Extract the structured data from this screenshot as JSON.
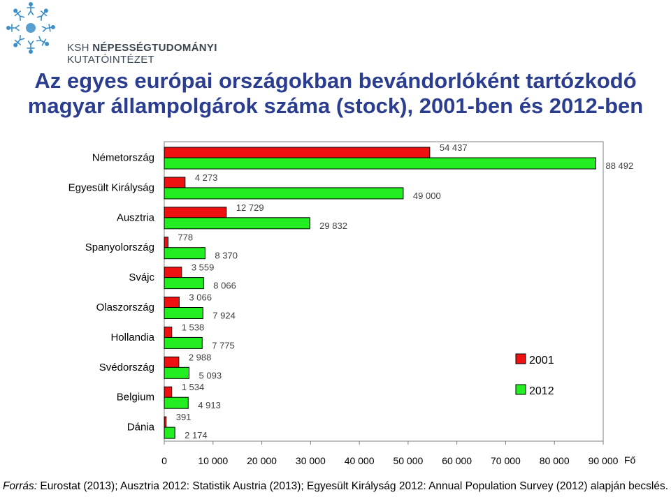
{
  "logo": {
    "org_name_line1_prefix": "KSH ",
    "org_name_line1_strong": "NÉPESSÉGTUDOMÁNYI",
    "org_name_line2": "KUTATÓINTÉZET",
    "color": "#3a8fc9"
  },
  "title": {
    "line1": "Az egyes európai országokban bevándorlóként tartózkodó",
    "line2": "magyar állampolgárok száma (stock), 2001-ben és 2012-ben"
  },
  "chart_data": {
    "type": "bar",
    "orientation": "horizontal",
    "categories": [
      "Németország",
      "Egyesült Királyság",
      "Ausztria",
      "Spanyolország",
      "Svájc",
      "Olaszország",
      "Hollandia",
      "Svédország",
      "Belgium",
      "Dánia"
    ],
    "series": [
      {
        "name": "2001",
        "color": "#ee1111",
        "values": [
          54437,
          4273,
          12729,
          778,
          3559,
          3066,
          1538,
          2988,
          1534,
          391
        ],
        "labels": [
          "54 437",
          "4 273",
          "12 729",
          "778",
          "3 559",
          "3 066",
          "1 538",
          "2 988",
          "1 534",
          "391"
        ]
      },
      {
        "name": "2012",
        "color": "#22ee22",
        "values": [
          88492,
          49000,
          29832,
          8370,
          8066,
          7924,
          7775,
          5093,
          4913,
          2174
        ],
        "labels": [
          "88 492",
          "49 000",
          "29 832",
          "8 370",
          "8 066",
          "7 924",
          "7 775",
          "5 093",
          "4 913",
          "2 174"
        ]
      }
    ],
    "xlim": [
      0,
      90000
    ],
    "xticks": [
      0,
      10000,
      20000,
      30000,
      40000,
      50000,
      60000,
      70000,
      80000,
      90000
    ],
    "xtick_labels": [
      "0",
      "10 000",
      "20 000",
      "30 000",
      "40 000",
      "50 000",
      "60 000",
      "70 000",
      "80 000",
      "90 000"
    ],
    "xlabel": "Fő",
    "ylabel": "",
    "legend_position": "right",
    "grid": false
  },
  "source": {
    "label": "Forrás:",
    "text": " Eurostat (2013); Ausztria 2012: Statistik Austria (2013); Egyesült Királyság 2012: Annual Population Survey (2012) alapján becslés."
  }
}
